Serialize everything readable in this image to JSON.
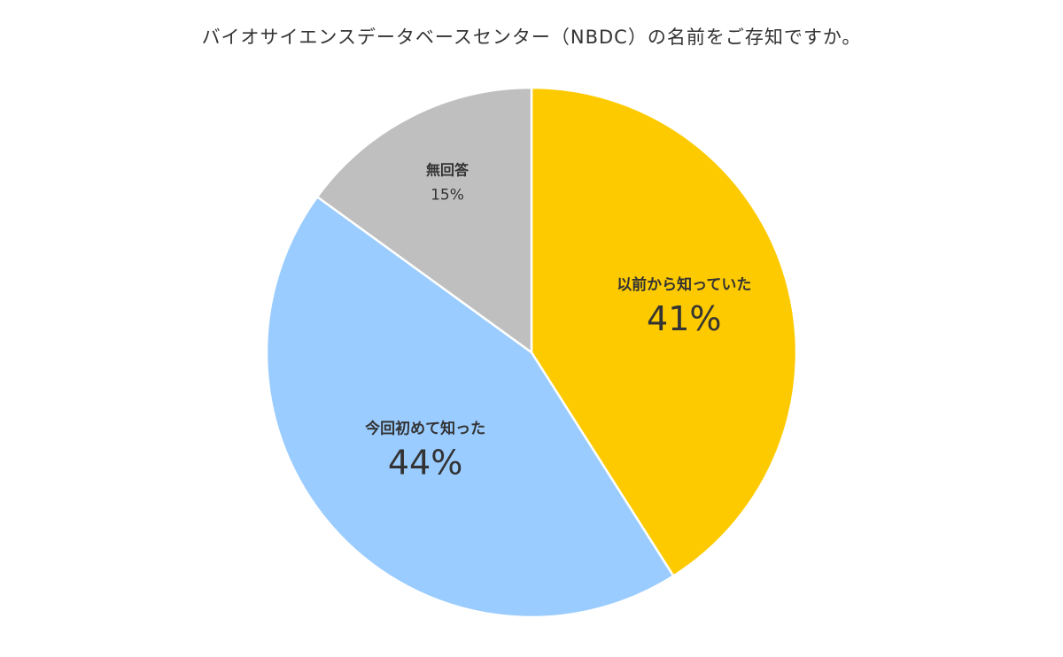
{
  "chart_data": {
    "type": "pie",
    "title": "バイオサイエンスデータベースセンター（NBDC）の名前をご存知ですか。",
    "slices": [
      {
        "name": "以前から知っていた",
        "value": 41,
        "label": "41%",
        "color": "#FDCA00"
      },
      {
        "name": "今回初めて知った",
        "value": 44,
        "label": "44%",
        "color": "#9ACCFF"
      },
      {
        "name": "無回答",
        "value": 15,
        "label": "15%",
        "color": "#BFBFBF"
      }
    ],
    "start_angle": "12 o'clock",
    "direction": "clockwise",
    "legend": "none"
  }
}
